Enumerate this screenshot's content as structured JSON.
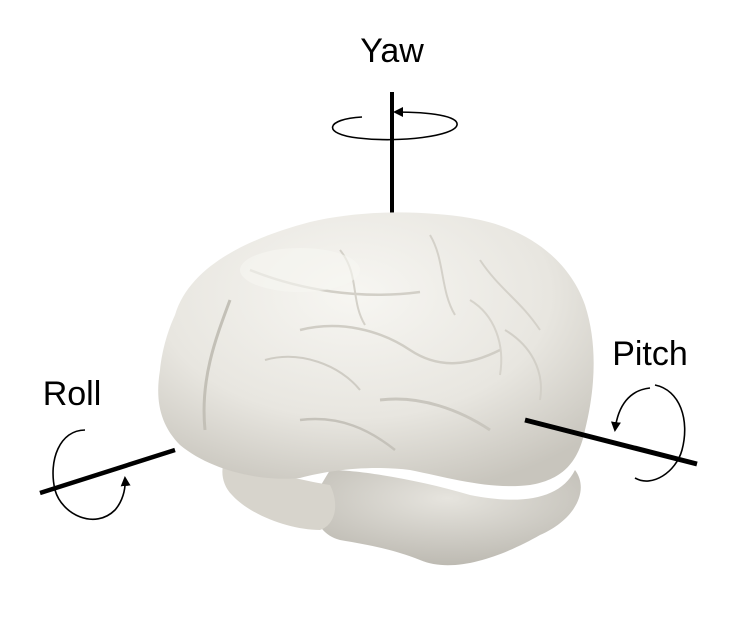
{
  "diagram": {
    "labels": {
      "yaw": "Yaw",
      "pitch": "Pitch",
      "roll": "Roll"
    },
    "colors": {
      "background": "#ffffff",
      "axis": "#000000",
      "brain_fill": "#ebe9e3",
      "brain_shadow": "#c9c6be",
      "brain_highlight": "#f6f5f1"
    },
    "icons": [
      "brain-model",
      "rotation-arrow"
    ]
  }
}
